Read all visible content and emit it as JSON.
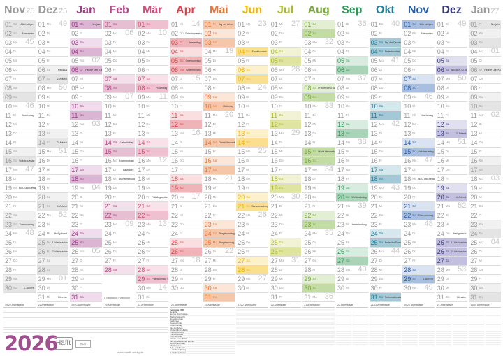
{
  "title": "2026",
  "publisher": "Häfft",
  "eco_badge": "eco",
  "website": "www.haefft-verlag.de",
  "moon_legend": "● Neumond ○ Vollmond",
  "holiday_table_title": "Feiertage 2026",
  "months": [
    {
      "name": "Nov",
      "year": "25",
      "color": "#9a9a9a",
      "sat": "#f1f1f1",
      "sun": "#e4e4e4",
      "workdays": "19/20 Arbeitstage",
      "days": [
        "01 Sa",
        "02 So",
        "03 Mo",
        "04 Di",
        "05 Mi",
        "06 Do",
        "07 Fr",
        "08 Sa",
        "09 So",
        "10 Mo",
        "11 Di",
        "12 Mi",
        "13 Do",
        "14 Fr",
        "15 Sa",
        "16 So",
        "17 Mo",
        "18 Di",
        "19 Mi",
        "20 Do",
        "21 Fr",
        "22 Sa",
        "23 So",
        "24 Mo",
        "25 Di",
        "26 Mi",
        "27 Do",
        "28 Fr",
        "29 Sa",
        "30 So"
      ],
      "weeks": {
        "03": "45",
        "10": "46",
        "17": "47",
        "24": "48"
      },
      "holidays": {
        "01": "Allerheiligen",
        "02": "Allerseelen",
        "11": "Martinstag",
        "16": "Volkstrauertag",
        "19": "Buß- und Bettag",
        "23": "Totensonntag",
        "30": "1. Advent"
      }
    },
    {
      "name": "Dez",
      "year": "25",
      "color": "#9a9a9a",
      "sat": "#f1f1f1",
      "sun": "#e4e4e4",
      "workdays": "21 Arbeitstage",
      "days": [
        "01 Mo",
        "02 Di",
        "03 Mi",
        "04 Do",
        "05 Fr",
        "06 Sa",
        "07 So",
        "08 Mo",
        "09 Di",
        "10 Mi",
        "11 Do",
        "12 Fr",
        "13 Sa",
        "14 So",
        "15 Mo",
        "16 Di",
        "17 Mi",
        "18 Do",
        "19 Fr",
        "20 Sa",
        "21 So",
        "22 Mo",
        "23 Di",
        "24 Mi",
        "25 Do",
        "26 Fr",
        "27 Sa",
        "28 So",
        "29 Mo",
        "30 Di",
        "31 Mi"
      ],
      "weeks": {
        "01": "49",
        "08": "50",
        "15": "51",
        "22": "52",
        "29": "01"
      },
      "holidays": {
        "06": "Nikolaus",
        "07": "2. Advent",
        "14": "3. Advent",
        "21": "4. Advent",
        "24": "Heiligabend",
        "25": "1. Weihnachtstag",
        "26": "2. Weihnachtstag",
        "31": "Silvester"
      }
    },
    {
      "name": "Jan",
      "year": "",
      "color": "#9b3f87",
      "sat": "#f0dcec",
      "sun": "#dcb5d4",
      "workdays": "20/21 Arbeitstage",
      "days": [
        "01 Do",
        "02 Fr",
        "03 Sa",
        "04 So",
        "05 Mo",
        "06 Di",
        "07 Mi",
        "08 Do",
        "09 Fr",
        "10 Sa",
        "11 So",
        "12 Mo",
        "13 Di",
        "14 Mi",
        "15 Do",
        "16 Fr",
        "17 Sa",
        "18 So",
        "19 Mo",
        "20 Di",
        "21 Mi",
        "22 Do",
        "23 Fr",
        "24 Sa",
        "25 So",
        "26 Mo",
        "27 Di",
        "28 Mi",
        "29 Do",
        "30 Fr",
        "31 Sa"
      ],
      "weeks": {
        "05": "02",
        "12": "03",
        "19": "04",
        "26": "05"
      },
      "holidays": {
        "01": "Neujahr",
        "06": "Heilige Drei Könige"
      }
    },
    {
      "name": "Feb",
      "year": "",
      "color": "#b54a86",
      "sat": "#f4e0ea",
      "sun": "#e6bfd3",
      "workdays": "20 Arbeitstage",
      "days": [
        "01 So",
        "02 Mo",
        "03 Di",
        "04 Mi",
        "05 Do",
        "06 Fr",
        "07 Sa",
        "08 So",
        "09 Mo",
        "10 Di",
        "11 Mi",
        "12 Do",
        "13 Fr",
        "14 Sa",
        "15 So",
        "16 Mo",
        "17 Di",
        "18 Mi",
        "19 Do",
        "20 Fr",
        "21 Sa",
        "22 So",
        "23 Mo",
        "24 Di",
        "25 Mi",
        "26 Do",
        "27 Fr",
        "28 Sa"
      ],
      "weeks": {
        "02": "06",
        "09": "07",
        "16": "08",
        "23": "09"
      },
      "holidays": {
        "14": "Valentinstag",
        "16": "Rosenmontag",
        "17": "Fastnacht",
        "18": "Aschermittwoch"
      }
    },
    {
      "name": "Mär",
      "year": "",
      "color": "#d24d79",
      "sat": "#f8e1e8",
      "sun": "#efc0cf",
      "workdays": "22 Arbeitstage",
      "days": [
        "01 So",
        "02 Mo",
        "03 Di",
        "04 Mi",
        "05 Do",
        "06 Fr",
        "07 Sa",
        "08 So",
        "09 Mo",
        "10 Di",
        "11 Mi",
        "12 Do",
        "13 Fr",
        "14 Sa",
        "15 So",
        "16 Mo",
        "17 Di",
        "18 Mi",
        "19 Do",
        "20 Fr",
        "21 Sa",
        "22 So",
        "23 Mo",
        "24 Di",
        "25 Mi",
        "26 Do",
        "27 Fr",
        "28 Sa",
        "29 So",
        "30 Mo",
        "31 Di"
      ],
      "weeks": {
        "02": "10",
        "09": "11",
        "16": "12",
        "23": "13",
        "30": "14"
      },
      "holidays": {
        "08": "Frauentag",
        "20": "Frühlingsanfang",
        "29": "Palmsonntag / Sommerzeit"
      }
    },
    {
      "name": "Apr",
      "year": "",
      "color": "#d9454f",
      "sat": "#f9dfe0",
      "sun": "#efb4b7",
      "workdays": "20 Arbeitstage",
      "days": [
        "01 Mi",
        "02 Do",
        "03 Fr",
        "04 Sa",
        "05 So",
        "06 Mo",
        "07 Di",
        "08 Mi",
        "09 Do",
        "10 Fr",
        "11 Sa",
        "12 So",
        "13 Mo",
        "14 Di",
        "15 Mi",
        "16 Do",
        "17 Fr",
        "18 Sa",
        "19 So",
        "20 Mo",
        "21 Di",
        "22 Mi",
        "23 Do",
        "24 Fr",
        "25 Sa",
        "26 So",
        "27 Mo",
        "28 Di",
        "29 Mi",
        "30 Do"
      ],
      "weeks": {
        "01": "14",
        "07": "15",
        "13": "16",
        "20": "17",
        "27": "18"
      },
      "holidays": {
        "02": "Gründonnerstag",
        "03": "Karfreitag",
        "05": "Ostersonntag",
        "06": "Ostermontag"
      }
    },
    {
      "name": "Mai",
      "year": "",
      "color": "#e8763c",
      "sat": "#fce6d8",
      "sun": "#f6c6a8",
      "workdays": "19 Arbeitstage",
      "days": [
        "01 Fr",
        "02 Sa",
        "03 So",
        "04 Mo",
        "05 Di",
        "06 Mi",
        "07 Do",
        "08 Fr",
        "09 Sa",
        "10 So",
        "11 Mo",
        "12 Di",
        "13 Mi",
        "14 Do",
        "15 Fr",
        "16 Sa",
        "17 So",
        "18 Mo",
        "19 Di",
        "20 Mi",
        "21 Do",
        "22 Fr",
        "23 Sa",
        "24 So",
        "25 Mo",
        "26 Di",
        "27 Mi",
        "28 Do",
        "29 Fr",
        "30 Sa",
        "31 So"
      ],
      "weeks": {
        "04": "19",
        "11": "20",
        "18": "21",
        "26": "22"
      },
      "holidays": {
        "01": "Tag der Arbeit",
        "10": "Muttertag",
        "14": "Christi Himmelfahrt",
        "24": "Pfingstsonntag",
        "25": "Pfingstmontag"
      }
    },
    {
      "name": "Jun",
      "year": "",
      "color": "#f0b400",
      "sat": "#fdf1cc",
      "sun": "#fadf8f",
      "workdays": "21/22 Arbeitstage",
      "days": [
        "01 Mo",
        "02 Di",
        "03 Mi",
        "04 Do",
        "05 Fr",
        "06 Sa",
        "07 So",
        "08 Mo",
        "09 Di",
        "10 Mi",
        "11 Do",
        "12 Fr",
        "13 Sa",
        "14 So",
        "15 Mo",
        "16 Di",
        "17 Mi",
        "18 Do",
        "19 Fr",
        "20 Sa",
        "21 So",
        "22 Mo",
        "23 Di",
        "24 Mi",
        "25 Do",
        "26 Fr",
        "27 Sa",
        "28 So",
        "29 Mo",
        "30 Di"
      ],
      "weeks": {
        "01": "23",
        "08": "24",
        "15": "25",
        "22": "26",
        "29": "27"
      },
      "holidays": {
        "04": "Fronleichnam",
        "21": "Sommeranfang"
      }
    },
    {
      "name": "Jul",
      "year": "",
      "color": "#a8b830",
      "sat": "#f1f3d4",
      "sun": "#dfe4a0",
      "workdays": "23 Arbeitstage",
      "days": [
        "01 Mi",
        "02 Do",
        "03 Fr",
        "04 Sa",
        "05 So",
        "06 Mo",
        "07 Di",
        "08 Mi",
        "09 Do",
        "10 Fr",
        "11 Sa",
        "12 So",
        "13 Mo",
        "14 Di",
        "15 Mi",
        "16 Do",
        "17 Fr",
        "18 Sa",
        "19 So",
        "20 Mo",
        "21 Di",
        "22 Mi",
        "23 Do",
        "24 Fr",
        "25 Sa",
        "26 So",
        "27 Mo",
        "28 Di",
        "29 Mi",
        "30 Do",
        "31 Fr"
      ],
      "weeks": {
        "01": "27",
        "06": "28",
        "13": "29",
        "20": "30",
        "27": "31"
      },
      "holidays": {}
    },
    {
      "name": "Aug",
      "year": "",
      "color": "#7aaa3c",
      "sat": "#e3efd3",
      "sun": "#c3dca6",
      "workdays": "21 Arbeitstage",
      "days": [
        "01 Sa",
        "02 So",
        "03 Mo",
        "04 Di",
        "05 Mi",
        "06 Do",
        "07 Fr",
        "08 Sa",
        "09 So",
        "10 Mo",
        "11 Di",
        "12 Mi",
        "13 Do",
        "14 Fr",
        "15 Sa",
        "16 So",
        "17 Mo",
        "18 Di",
        "19 Mi",
        "20 Do",
        "21 Fr",
        "22 Sa",
        "23 So",
        "24 Mo",
        "25 Di",
        "26 Mi",
        "27 Do",
        "28 Fr",
        "29 Sa",
        "30 So",
        "31 Mo"
      ],
      "weeks": {
        "03": "32",
        "10": "33",
        "17": "34",
        "24": "35",
        "31": "36"
      },
      "holidays": {
        "08": "Friedensfest (Augsburg)",
        "15": "Mariä Himmelfahrt"
      }
    },
    {
      "name": "Sep",
      "year": "",
      "color": "#2e9a5a",
      "sat": "#d8eddf",
      "sun": "#a9d4b7",
      "workdays": "22 Arbeitstage",
      "days": [
        "01 Di",
        "02 Mi",
        "03 Do",
        "04 Fr",
        "05 Sa",
        "06 So",
        "07 Mo",
        "08 Di",
        "09 Mi",
        "10 Do",
        "11 Fr",
        "12 Sa",
        "13 So",
        "14 Mo",
        "15 Di",
        "16 Mi",
        "17 Do",
        "18 Fr",
        "19 Sa",
        "20 So",
        "21 Mo",
        "22 Di",
        "23 Mi",
        "24 Do",
        "25 Fr",
        "26 Sa",
        "27 So",
        "28 Mo",
        "29 Di",
        "30 Mi"
      ],
      "weeks": {
        "01": "36",
        "07": "37",
        "14": "38",
        "21": "39",
        "28": "40"
      },
      "holidays": {
        "20": "Weltkindertag",
        "23": "Herbstanfang"
      }
    },
    {
      "name": "Okt",
      "year": "",
      "color": "#1f7f9a",
      "sat": "#d5e8ee",
      "sun": "#a4c9d6",
      "workdays": "21/22 Arbeitstage",
      "days": [
        "01 Do",
        "02 Fr",
        "03 Sa",
        "04 So",
        "05 Mo",
        "06 Di",
        "07 Mi",
        "08 Do",
        "09 Fr",
        "10 Sa",
        "11 So",
        "12 Mo",
        "13 Di",
        "14 Mi",
        "15 Do",
        "16 Fr",
        "17 Sa",
        "18 So",
        "19 Mo",
        "20 Di",
        "21 Mi",
        "22 Do",
        "23 Fr",
        "24 Sa",
        "25 So",
        "26 Mo",
        "27 Di",
        "28 Mi",
        "29 Do",
        "30 Fr",
        "31 Sa"
      ],
      "weeks": {
        "01": "40",
        "05": "41",
        "12": "42",
        "19": "43",
        "26": "44"
      },
      "holidays": {
        "03": "Tag der Deutschen Einheit",
        "04": "Erntedankfest",
        "25": "Ende der Sommerzeit",
        "31": "Reformationstag"
      }
    },
    {
      "name": "Nov",
      "year": "",
      "color": "#2a5fa8",
      "sat": "#d9e3f2",
      "sun": "#a9bfe0",
      "workdays": "20/21 Arbeitstage",
      "days": [
        "01 So",
        "02 Mo",
        "03 Di",
        "04 Mi",
        "05 Do",
        "06 Fr",
        "07 Sa",
        "08 So",
        "09 Mo",
        "10 Di",
        "11 Mi",
        "12 Do",
        "13 Fr",
        "14 Sa",
        "15 So",
        "16 Mo",
        "17 Di",
        "18 Mi",
        "19 Do",
        "20 Fr",
        "21 Sa",
        "22 So",
        "23 Mo",
        "24 Di",
        "25 Mi",
        "26 Do",
        "27 Fr",
        "28 Sa",
        "29 So",
        "30 Mo"
      ],
      "weeks": {
        "02": "45",
        "09": "46",
        "16": "47",
        "23": "48",
        "30": "49"
      },
      "holidays": {
        "01": "Allerheiligen",
        "02": "Allerseelen",
        "11": "Martinstag",
        "15": "Volkstrauertag",
        "18": "Buß- und Bettag",
        "22": "Totensonntag",
        "29": "1. Advent"
      }
    },
    {
      "name": "Dez",
      "year": "",
      "color": "#3a3a7a",
      "sat": "#e1e0ef",
      "sun": "#c2c0de",
      "workdays": "21 Arbeitstage",
      "days": [
        "01 Di",
        "02 Mi",
        "03 Do",
        "04 Fr",
        "05 Sa",
        "06 So",
        "07 Mo",
        "08 Di",
        "09 Mi",
        "10 Do",
        "11 Fr",
        "12 Sa",
        "13 So",
        "14 Mo",
        "15 Di",
        "16 Mi",
        "17 Do",
        "18 Fr",
        "19 Sa",
        "20 So",
        "21 Mo",
        "22 Di",
        "23 Mi",
        "24 Do",
        "25 Fr",
        "26 Sa",
        "27 So",
        "28 Mo",
        "29 Di",
        "30 Mi",
        "31 Do"
      ],
      "weeks": {
        "01": "49",
        "07": "50",
        "14": "51",
        "21": "52",
        "28": "53"
      },
      "holidays": {
        "06": "Nikolaus / 2. Advent",
        "13": "3. Advent",
        "20": "4. Advent",
        "24": "Heiligabend",
        "25": "1. Weihnachtstag",
        "26": "2. Weihnachtstag",
        "31": "Silvester"
      }
    },
    {
      "name": "Jan",
      "year": "27",
      "color": "#9a9a9a",
      "sat": "#f1f1f1",
      "sun": "#e4e4e4",
      "workdays": "19/20 Arbeitstage",
      "days": [
        "01 Fr",
        "02 Sa",
        "03 So",
        "04 Mo",
        "05 Di",
        "06 Mi",
        "07 Do",
        "08 Fr",
        "09 Sa",
        "10 So",
        "11 Mo",
        "12 Di",
        "13 Mi",
        "14 Do",
        "15 Fr",
        "16 Sa",
        "17 So",
        "18 Mo",
        "19 Di",
        "20 Mi",
        "21 Do",
        "22 Fr",
        "23 Sa",
        "24 So",
        "25 Mo",
        "26 Di",
        "27 Mi",
        "28 Do",
        "29 Fr",
        "30 Sa",
        "31 So"
      ],
      "weeks": {
        "04": "01",
        "11": "02",
        "18": "03",
        "25": "04"
      },
      "holidays": {
        "01": "Neujahr",
        "06": "Heilige Drei Könige"
      }
    }
  ],
  "holiday_table": [
    "Neujahr",
    "Heilige Drei Könige",
    "Weiberfastnacht",
    "Rosenmontag",
    "Karfreitag",
    "Ostersonntag",
    "Ostermontag",
    "Tag der Arbeit",
    "Christi Himmelfahrt",
    "Pfingstsonntag",
    "Pfingstmontag",
    "Fronleichnam",
    "Mariä Himmelfahrt",
    "Tag der Deutschen Einheit",
    "Reformationstag",
    "Allerheiligen",
    "Buß- und Bettag",
    "1. Weihnachtstag",
    "2. Weihnachtstag"
  ]
}
